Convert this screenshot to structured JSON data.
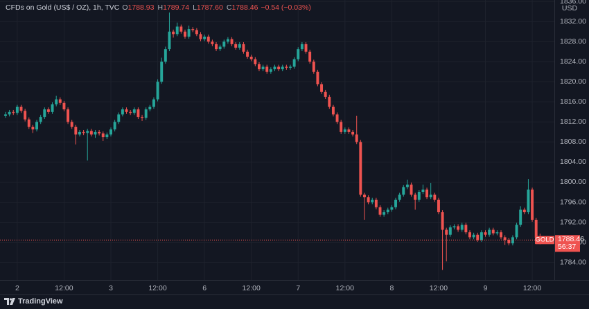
{
  "chart_data": {
    "type": "candlestick",
    "header": {
      "symbol": "CFDs on Gold (US$ / OZ), 1h, TVC",
      "fields": [
        {
          "key": "O",
          "text": "1788.93"
        },
        {
          "key": "H",
          "text": "1789.74"
        },
        {
          "key": "L",
          "text": "1787.60"
        },
        {
          "key": "C",
          "text": "1788.46"
        }
      ],
      "change": "−0.54 (−0.03%)"
    },
    "currency": "USD",
    "price_tag": {
      "symbol": "GOLD",
      "label": "1788.46",
      "countdown": "56:37"
    },
    "brand": "TradingView",
    "up_color": "#26a69a",
    "down_color": "#ef5350",
    "grid": true,
    "xlim": [
      -1.42,
      140.67
    ],
    "xticks": [
      {
        "value": 3,
        "label": "2"
      },
      {
        "value": 15,
        "label": "12:00"
      },
      {
        "value": 27,
        "label": "3"
      },
      {
        "value": 39,
        "label": "12:00"
      },
      {
        "value": 51,
        "label": "6"
      },
      {
        "value": 63,
        "label": "12:00"
      },
      {
        "value": 75,
        "label": "7"
      },
      {
        "value": 87,
        "label": "12:00"
      },
      {
        "value": 99,
        "label": "8"
      },
      {
        "value": 111,
        "label": "12:00"
      },
      {
        "value": 123,
        "label": "9"
      },
      {
        "value": 135,
        "label": "12:00"
      }
    ],
    "ylim": [
      1780.5,
      1836.3
    ],
    "yticks": [
      {
        "value": 1784,
        "label": "1784.00"
      },
      {
        "value": 1788,
        "label": "1788.00"
      },
      {
        "value": 1792,
        "label": "1792.00"
      },
      {
        "value": 1796,
        "label": "1796.00"
      },
      {
        "value": 1800,
        "label": "1800.00"
      },
      {
        "value": 1804,
        "label": "1804.00"
      },
      {
        "value": 1808,
        "label": "1808.00"
      },
      {
        "value": 1812,
        "label": "1812.00"
      },
      {
        "value": 1816,
        "label": "1816.00"
      },
      {
        "value": 1820,
        "label": "1820.00"
      },
      {
        "value": 1824,
        "label": "1824.00"
      },
      {
        "value": 1828,
        "label": "1828.00"
      },
      {
        "value": 1832,
        "label": "1832.00"
      },
      {
        "value": 1836,
        "label": "1836.00"
      }
    ],
    "ohlc": [
      [
        1813.2,
        1814.0,
        1812.8,
        1813.5
      ],
      [
        1813.5,
        1814.4,
        1813.1,
        1814
      ],
      [
        1814,
        1814.4,
        1813.4,
        1813.8
      ],
      [
        1813.8,
        1815.4,
        1813.4,
        1815
      ],
      [
        1815,
        1815.4,
        1813.8,
        1814.2
      ],
      [
        1814.2,
        1814.6,
        1812.1,
        1812.5
      ],
      [
        1812.5,
        1812.9,
        1810.6,
        1811
      ],
      [
        1811,
        1811.4,
        1809.8,
        1810.5
      ],
      [
        1810.5,
        1812.4,
        1810.1,
        1812
      ],
      [
        1812,
        1813.4,
        1811.6,
        1813
      ],
      [
        1813,
        1814.9,
        1812.6,
        1814.5
      ],
      [
        1814.5,
        1814.9,
        1813.6,
        1814
      ],
      [
        1814,
        1815.9,
        1813.6,
        1815.5
      ],
      [
        1815.5,
        1817.2,
        1815.1,
        1816.5
      ],
      [
        1816.5,
        1816.9,
        1815.4,
        1815.8
      ],
      [
        1815.8,
        1816.2,
        1814.1,
        1814.5
      ],
      [
        1814.5,
        1814.9,
        1811.6,
        1812
      ],
      [
        1812,
        1812.4,
        1810.6,
        1811
      ],
      [
        1811,
        1811.4,
        1807.5,
        1809.5
      ],
      [
        1809.5,
        1810.4,
        1809.1,
        1810
      ],
      [
        1810,
        1810.4,
        1809.4,
        1809.8
      ],
      [
        1809.8,
        1810.6,
        1804.3,
        1810.2
      ],
      [
        1810.2,
        1810.6,
        1809.1,
        1809.5
      ],
      [
        1809.5,
        1810.4,
        1808.8,
        1810
      ],
      [
        1810,
        1810.4,
        1809.3,
        1809.7
      ],
      [
        1809.7,
        1810.1,
        1808.2,
        1809
      ],
      [
        1809,
        1809.9,
        1808.6,
        1809.5
      ],
      [
        1809.5,
        1810.9,
        1809.1,
        1810.5
      ],
      [
        1810.5,
        1812.4,
        1810.1,
        1812
      ],
      [
        1812,
        1813.9,
        1811.6,
        1813.5
      ],
      [
        1813.5,
        1814.9,
        1813.1,
        1814.5
      ],
      [
        1814.5,
        1814.9,
        1813.6,
        1814
      ],
      [
        1814,
        1814.4,
        1813.4,
        1813.8
      ],
      [
        1813.8,
        1814.9,
        1813.4,
        1814.5
      ],
      [
        1814.5,
        1814.9,
        1812.6,
        1813
      ],
      [
        1813,
        1813.4,
        1812.2,
        1812.8
      ],
      [
        1812.8,
        1814.9,
        1812.4,
        1814.5
      ],
      [
        1814.5,
        1815.4,
        1814.1,
        1815
      ],
      [
        1815,
        1816.9,
        1814.6,
        1816.5
      ],
      [
        1816.5,
        1820.5,
        1816.1,
        1820
      ],
      [
        1820,
        1824.8,
        1819.6,
        1824
      ],
      [
        1824,
        1827,
        1823.6,
        1826.5
      ],
      [
        1826.5,
        1833.8,
        1826.1,
        1830
      ],
      [
        1830,
        1830.4,
        1828.8,
        1829.5
      ],
      [
        1829.5,
        1831.8,
        1829.1,
        1831
      ],
      [
        1831,
        1831.4,
        1829.6,
        1830
      ],
      [
        1830,
        1830.4,
        1828.6,
        1829
      ],
      [
        1829,
        1831.2,
        1828.6,
        1830.5
      ],
      [
        1830.5,
        1830.9,
        1829.9,
        1830.3
      ],
      [
        1830.3,
        1830.7,
        1829.1,
        1829.5
      ],
      [
        1829.5,
        1829.9,
        1828.1,
        1828.5
      ],
      [
        1828.5,
        1829.4,
        1828.1,
        1829
      ],
      [
        1829,
        1829.4,
        1827.6,
        1828
      ],
      [
        1828,
        1828.4,
        1827.1,
        1827.5
      ],
      [
        1827.5,
        1827.9,
        1826.1,
        1826.5
      ],
      [
        1826.5,
        1827.4,
        1826.1,
        1827
      ],
      [
        1827,
        1828.4,
        1826.6,
        1828
      ],
      [
        1828,
        1828.9,
        1827.6,
        1828.5
      ],
      [
        1828.5,
        1828.9,
        1827.1,
        1827.5
      ],
      [
        1827.5,
        1827.9,
        1826.4,
        1826.8
      ],
      [
        1826.8,
        1827.9,
        1826.4,
        1827.5
      ],
      [
        1827.5,
        1827.9,
        1825.6,
        1826
      ],
      [
        1826,
        1826.4,
        1824.6,
        1825
      ],
      [
        1825,
        1825.4,
        1824.1,
        1824.5
      ],
      [
        1824.5,
        1824.9,
        1823.1,
        1823.5
      ],
      [
        1823.5,
        1823.9,
        1822.1,
        1822.5
      ],
      [
        1822.5,
        1823.4,
        1822.1,
        1823
      ],
      [
        1823,
        1823.4,
        1821.6,
        1822
      ],
      [
        1822,
        1822.9,
        1821.6,
        1822.5
      ],
      [
        1822.5,
        1823.4,
        1822.1,
        1823
      ],
      [
        1823,
        1823.4,
        1822.1,
        1822.5
      ],
      [
        1822.5,
        1823.4,
        1822.1,
        1823
      ],
      [
        1823,
        1823.4,
        1822.4,
        1822.8
      ],
      [
        1822.8,
        1823.4,
        1822.4,
        1823
      ],
      [
        1823,
        1824.9,
        1822.6,
        1824.5
      ],
      [
        1824.5,
        1826.9,
        1824.1,
        1826.5
      ],
      [
        1826.5,
        1827.9,
        1826.1,
        1827.5
      ],
      [
        1827.5,
        1827.9,
        1825.6,
        1826
      ],
      [
        1826,
        1826.4,
        1823.6,
        1824
      ],
      [
        1824,
        1824.4,
        1821.6,
        1822
      ],
      [
        1822,
        1822.4,
        1819.1,
        1819.5
      ],
      [
        1819.5,
        1819.9,
        1817.6,
        1818
      ],
      [
        1818,
        1818.4,
        1816.6,
        1817
      ],
      [
        1817,
        1817.4,
        1814.6,
        1815
      ],
      [
        1815,
        1815.4,
        1813.1,
        1813.5
      ],
      [
        1813.5,
        1813.9,
        1811.6,
        1812
      ],
      [
        1812,
        1812.4,
        1809.6,
        1810
      ],
      [
        1810,
        1810.9,
        1809.6,
        1810.5
      ],
      [
        1810.5,
        1810.9,
        1809.6,
        1810
      ],
      [
        1810,
        1810.4,
        1809.1,
        1809.5
      ],
      [
        1809.5,
        1813.2,
        1807.6,
        1808
      ],
      [
        1808,
        1808.4,
        1797.1,
        1797.5
      ],
      [
        1797.5,
        1797.9,
        1792.5,
        1797
      ],
      [
        1797,
        1797.4,
        1795.6,
        1796
      ],
      [
        1796,
        1796.9,
        1795.6,
        1796.5
      ],
      [
        1796.5,
        1796.9,
        1794.6,
        1795
      ],
      [
        1795,
        1795.4,
        1793.1,
        1793.5
      ],
      [
        1793.5,
        1794.4,
        1793.1,
        1794
      ],
      [
        1794,
        1794.9,
        1793.6,
        1794.5
      ],
      [
        1794.5,
        1795.4,
        1794.1,
        1795
      ],
      [
        1795,
        1796.9,
        1794.6,
        1796.5
      ],
      [
        1796.5,
        1797.9,
        1796.1,
        1797.5
      ],
      [
        1797.5,
        1799.4,
        1797.1,
        1799
      ],
      [
        1799,
        1800.5,
        1798.6,
        1799.5
      ],
      [
        1799.5,
        1799.9,
        1797.1,
        1797.5
      ],
      [
        1797.5,
        1797.9,
        1794.5,
        1796.5
      ],
      [
        1796.5,
        1798.4,
        1796.1,
        1798
      ],
      [
        1798,
        1799.5,
        1797.6,
        1798.5
      ],
      [
        1798.5,
        1798.9,
        1796.6,
        1797
      ],
      [
        1797,
        1799.8,
        1796.6,
        1797.5
      ],
      [
        1797.5,
        1797.9,
        1796.1,
        1796.5
      ],
      [
        1796.5,
        1796.9,
        1793.6,
        1794
      ],
      [
        1794,
        1794.4,
        1782.5,
        1790.5
      ],
      [
        1790.5,
        1790.9,
        1784.2,
        1789.5
      ],
      [
        1789.5,
        1791.4,
        1789.1,
        1791
      ],
      [
        1791,
        1791.6,
        1790.6,
        1791.2
      ],
      [
        1791.2,
        1791.6,
        1790.1,
        1790.5
      ],
      [
        1790.5,
        1791.9,
        1790.1,
        1791.5
      ],
      [
        1791.5,
        1791.9,
        1789.6,
        1790
      ],
      [
        1790,
        1790.4,
        1788.6,
        1789
      ],
      [
        1789,
        1789.9,
        1788.6,
        1789.5
      ],
      [
        1789.5,
        1789.9,
        1788.1,
        1788.5
      ],
      [
        1788.5,
        1790.4,
        1788.1,
        1790
      ],
      [
        1790,
        1790.4,
        1789.1,
        1789.5
      ],
      [
        1789.5,
        1790.9,
        1789.1,
        1790.5
      ],
      [
        1790.5,
        1790.9,
        1789.4,
        1789.8
      ],
      [
        1789.8,
        1790.4,
        1789.4,
        1790
      ],
      [
        1790,
        1790.4,
        1788.6,
        1789
      ],
      [
        1789,
        1789.4,
        1787.5,
        1788.5
      ],
      [
        1788.5,
        1788.9,
        1787.4,
        1787.8
      ],
      [
        1787.8,
        1789.4,
        1787.4,
        1789
      ],
      [
        1789,
        1791.9,
        1788.6,
        1791.5
      ],
      [
        1791.5,
        1795.2,
        1791.1,
        1794.5
      ],
      [
        1794.5,
        1794.9,
        1793.6,
        1794
      ],
      [
        1794,
        1800.6,
        1793.6,
        1798.5
      ],
      [
        1798.5,
        1798.9,
        1792.1,
        1792.5
      ],
      [
        1792.5,
        1792.9,
        1788.6,
        1788.93
      ],
      [
        1788.93,
        1789.74,
        1787.6,
        1788.46
      ]
    ]
  }
}
